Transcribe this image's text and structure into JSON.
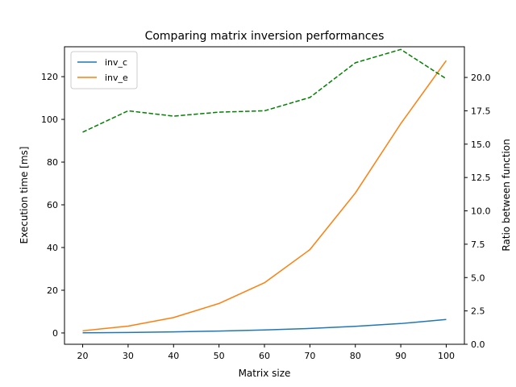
{
  "chart_data": {
    "type": "line",
    "title": "Comparing matrix inversion performances",
    "xlabel": "Matrix size",
    "ylabel": "Execution time [ms]",
    "ylabel_right": "Ratio between function",
    "x": [
      20,
      30,
      40,
      50,
      60,
      70,
      80,
      90,
      100
    ],
    "xlim": [
      16,
      104
    ],
    "ylim": [
      -5.3,
      134.0
    ],
    "ylim_right": [
      0,
      22.3
    ],
    "x_ticks": [
      "20",
      "30",
      "40",
      "50",
      "60",
      "70",
      "80",
      "90",
      "100"
    ],
    "y_ticks": [
      "0",
      "20",
      "40",
      "60",
      "80",
      "100",
      "120"
    ],
    "y_ticks_right": [
      "0.0",
      "2.5",
      "5.0",
      "7.5",
      "10.0",
      "12.5",
      "15.0",
      "17.5",
      "20.0"
    ],
    "grid": false,
    "legend": "top-left",
    "series": [
      {
        "name": "inv_c",
        "axis": "left",
        "style": "solid",
        "color": "#1f77b4",
        "values": [
          0.1,
          0.2,
          0.5,
          0.9,
          1.4,
          2.1,
          3.1,
          4.4,
          6.3
        ]
      },
      {
        "name": "inv_e",
        "axis": "left",
        "style": "solid",
        "color": "#ff7f0e",
        "values": [
          1.0,
          3.2,
          7.2,
          13.8,
          23.5,
          39.0,
          65.5,
          98.0,
          127.5
        ]
      },
      {
        "name": "",
        "axis": "right",
        "style": "dashed",
        "color": "#008000",
        "values": [
          15.9,
          17.5,
          17.1,
          17.4,
          17.5,
          18.5,
          21.1,
          22.1,
          19.9
        ]
      }
    ]
  }
}
